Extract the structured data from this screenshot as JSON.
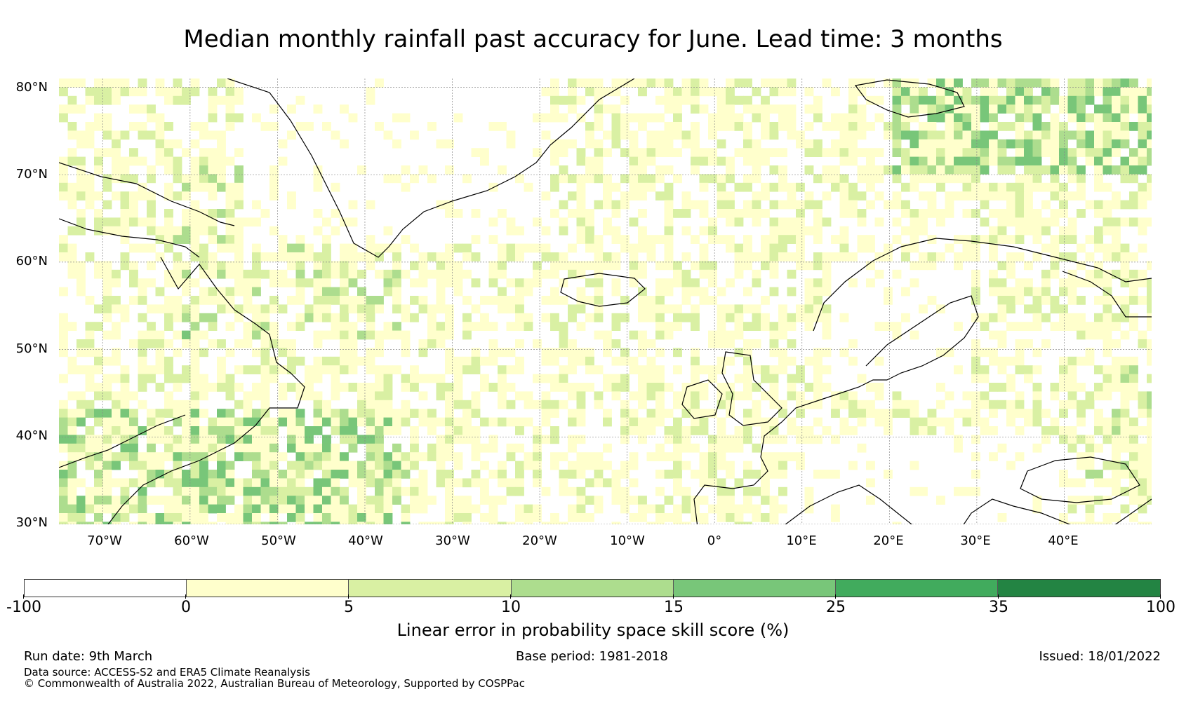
{
  "title": "Median monthly rainfall past accuracy for June. Lead time: 3 months",
  "map": {
    "lat_labels": [
      "80°N",
      "70°N",
      "60°N",
      "50°N",
      "40°N",
      "30°N"
    ],
    "lon_labels": [
      "70°W",
      "60°W",
      "50°W",
      "40°W",
      "30°W",
      "20°W",
      "10°W",
      "0°",
      "10°E",
      "20°E",
      "30°E",
      "40°E"
    ],
    "lat_range": [
      30,
      81
    ],
    "lon_range": [
      -75,
      50
    ]
  },
  "legend": {
    "ticks": [
      "-100",
      "0",
      "5",
      "10",
      "15",
      "25",
      "35",
      "100"
    ],
    "colors": [
      "#ffffff",
      "#ffffcc",
      "#d9f0a3",
      "#addd8e",
      "#78c679",
      "#41ab5d",
      "#238443"
    ],
    "label": "Linear error in probability space skill score (%)"
  },
  "footer": {
    "run_date": "Run date: 9th March",
    "base_period": "Base period: 1981-2018",
    "issued": "Issued: 18/01/2022",
    "data_source": "Data source: ACCESS-S2 and ERA5 Climate Reanalysis",
    "copyright": "© Commonwealth of Australia 2022, Australian Bureau of Meteorology, Supported by COSPPac"
  }
}
